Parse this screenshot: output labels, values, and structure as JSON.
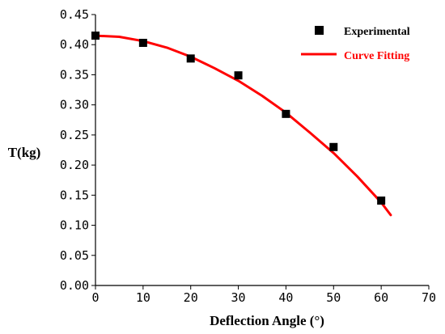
{
  "chart_data": {
    "type": "scatter",
    "xlabel": "Deflection Angle (°)",
    "ylabel": "T(kg)",
    "xlim": [
      0,
      70
    ],
    "ylim": [
      0,
      0.45
    ],
    "x_ticks": [
      "0",
      "10",
      "20",
      "30",
      "40",
      "50",
      "60",
      "70"
    ],
    "y_ticks": [
      "0.00",
      "0.05",
      "0.10",
      "0.15",
      "0.20",
      "0.25",
      "0.30",
      "0.35",
      "0.40",
      "0.45"
    ],
    "grid": false,
    "legend_position": "top-right",
    "series": [
      {
        "name": "Experimental",
        "type": "scatter",
        "marker": "square",
        "color": "#000000",
        "points": [
          {
            "x": 0,
            "y": 0.415
          },
          {
            "x": 10,
            "y": 0.403
          },
          {
            "x": 20,
            "y": 0.377
          },
          {
            "x": 30,
            "y": 0.349
          },
          {
            "x": 40,
            "y": 0.285
          },
          {
            "x": 50,
            "y": 0.23
          },
          {
            "x": 60,
            "y": 0.141
          }
        ]
      },
      {
        "name": "Curve Fitting",
        "type": "line",
        "color": "#ff0000",
        "points": [
          {
            "x": 0,
            "y": 0.415
          },
          {
            "x": 5,
            "y": 0.413
          },
          {
            "x": 10,
            "y": 0.406
          },
          {
            "x": 15,
            "y": 0.395
          },
          {
            "x": 20,
            "y": 0.38
          },
          {
            "x": 25,
            "y": 0.361
          },
          {
            "x": 30,
            "y": 0.34
          },
          {
            "x": 35,
            "y": 0.315
          },
          {
            "x": 40,
            "y": 0.287
          },
          {
            "x": 45,
            "y": 0.254
          },
          {
            "x": 50,
            "y": 0.22
          },
          {
            "x": 55,
            "y": 0.181
          },
          {
            "x": 60,
            "y": 0.138
          },
          {
            "x": 62,
            "y": 0.117
          }
        ]
      }
    ]
  }
}
